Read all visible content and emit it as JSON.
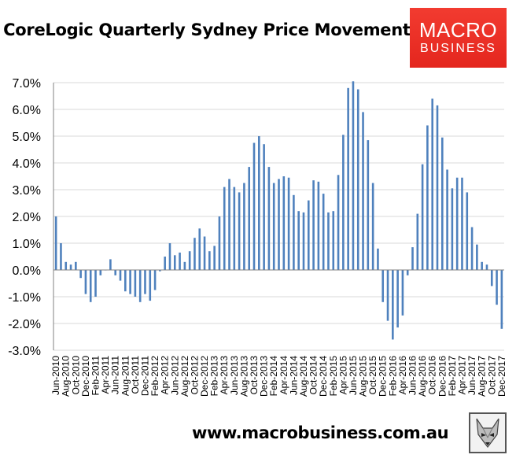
{
  "header": {
    "title": "CoreLogic Quarterly Sydney Price Movements"
  },
  "logo": {
    "line1": "MACRO",
    "line2": "BUSINESS"
  },
  "footer": {
    "url": "www.macrobusiness.com.au"
  },
  "colors": {
    "bar": "#4f81bd",
    "gridline": "#d9d9d9",
    "axis": "#808080",
    "logo_bg": "#e4261e"
  },
  "chart_data": {
    "type": "bar",
    "title": "CoreLogic Quarterly Sydney Price Movements",
    "xlabel": "",
    "ylabel": "",
    "ylim": [
      -3.0,
      7.0
    ],
    "yticks": [
      "7.0%",
      "6.0%",
      "5.0%",
      "4.0%",
      "3.0%",
      "2.0%",
      "1.0%",
      "0.0%",
      "-1.0%",
      "-2.0%",
      "-3.0%"
    ],
    "ytick_values": [
      7,
      6,
      5,
      4,
      3,
      2,
      1,
      0,
      -1,
      -2,
      -3
    ],
    "grid": true,
    "xtick_labels": [
      "Jun-2010",
      "Aug-2010",
      "Oct-2010",
      "Dec-2010",
      "Feb-2011",
      "Apr-2011",
      "Jun-2011",
      "Aug-2011",
      "Oct-2011",
      "Dec-2011",
      "Feb-2012",
      "Apr-2012",
      "Jun-2012",
      "Aug-2012",
      "Oct-2012",
      "Dec-2012",
      "Feb-2013",
      "Apr-2013",
      "Jun-2013",
      "Aug-2013",
      "Oct-2013",
      "Dec-2013",
      "Feb-2014",
      "Apr-2014",
      "Jun-2014",
      "Aug-2014",
      "Oct-2014",
      "Dec-2014",
      "Feb-2015",
      "Apr-2015",
      "Jun-2015",
      "Aug-2015",
      "Oct-2015",
      "Dec-2015",
      "Feb-2016",
      "Apr-2016",
      "Jun-2016",
      "Aug-2016",
      "Oct-2016",
      "Dec-2016",
      "Feb-2017",
      "Apr-2017",
      "Jun-2017",
      "Aug-2017",
      "Oct-2017",
      "Dec-2017"
    ],
    "values": [
      2.0,
      1.0,
      0.3,
      0.2,
      0.3,
      -0.3,
      -0.9,
      -1.2,
      -1.0,
      -0.2,
      0.0,
      0.4,
      -0.2,
      -0.4,
      -0.8,
      -0.9,
      -1.0,
      -1.2,
      -0.9,
      -1.15,
      -0.75,
      -0.05,
      0.5,
      1.0,
      0.55,
      0.65,
      0.3,
      0.7,
      1.2,
      1.55,
      1.25,
      0.7,
      0.9,
      2.0,
      3.1,
      3.4,
      3.1,
      2.9,
      3.25,
      3.85,
      4.75,
      5.0,
      4.7,
      3.85,
      3.25,
      3.4,
      3.5,
      3.45,
      2.8,
      2.2,
      2.15,
      2.6,
      3.35,
      3.3,
      2.85,
      2.15,
      2.2,
      3.55,
      5.05,
      6.8,
      7.05,
      6.75,
      5.9,
      4.85,
      3.25,
      0.8,
      -1.2,
      -1.9,
      -2.6,
      -2.15,
      -1.7,
      -0.2,
      0.85,
      2.1,
      3.95,
      5.4,
      6.4,
      6.15,
      4.95,
      3.75,
      3.05,
      3.45,
      3.45,
      2.9,
      1.6,
      0.95,
      0.3,
      0.2,
      -0.6,
      -1.3,
      -2.2
    ]
  }
}
